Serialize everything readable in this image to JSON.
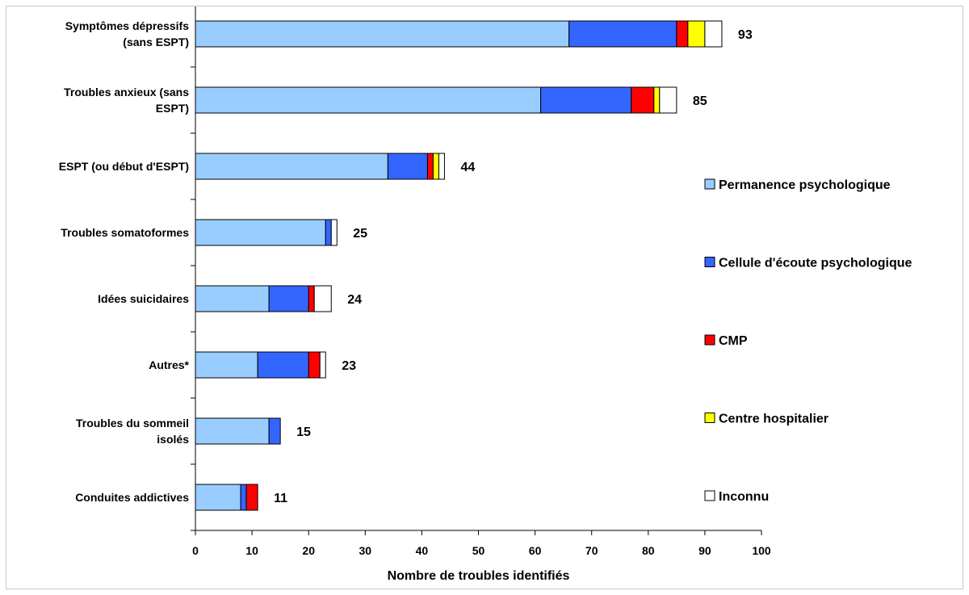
{
  "chart_data": {
    "type": "bar",
    "orientation": "horizontal",
    "stacked": true,
    "title": "",
    "xlabel": "Nombre de troubles identifiés",
    "ylabel": "",
    "xlim": [
      0,
      100
    ],
    "xticks": [
      0,
      10,
      20,
      30,
      40,
      50,
      60,
      70,
      80,
      90,
      100
    ],
    "grid": false,
    "legend_position": "right",
    "categories": [
      [
        "Symptômes dépressifs",
        "(sans ESPT)"
      ],
      [
        "Troubles anxieux (sans",
        "ESPT)"
      ],
      [
        "ESPT (ou début d'ESPT)"
      ],
      [
        "Troubles somatoformes"
      ],
      [
        "Idées suicidaires"
      ],
      [
        "Autres*"
      ],
      [
        "Troubles du sommeil",
        "isolés"
      ],
      [
        "Conduites addictives"
      ]
    ],
    "series": [
      {
        "name": "Permanence psychologique",
        "color": "#99ccff",
        "values": [
          66,
          61,
          34,
          23,
          13,
          11,
          13,
          8
        ]
      },
      {
        "name": "Cellule d'écoute psychologique",
        "color": "#3366ff",
        "values": [
          19,
          16,
          7,
          1,
          7,
          9,
          2,
          1
        ]
      },
      {
        "name": "CMP",
        "color": "#ff0000",
        "values": [
          2,
          4,
          1,
          0,
          1,
          2,
          0,
          2
        ]
      },
      {
        "name": "Centre hospitalier",
        "color": "#ffff00",
        "values": [
          3,
          1,
          1,
          0,
          0,
          0,
          0,
          0
        ]
      },
      {
        "name": "Inconnu",
        "color": "#ffffff",
        "values": [
          3,
          3,
          1,
          1,
          3,
          1,
          0,
          0
        ]
      }
    ],
    "totals": [
      93,
      85,
      44,
      25,
      24,
      23,
      15,
      11
    ]
  }
}
